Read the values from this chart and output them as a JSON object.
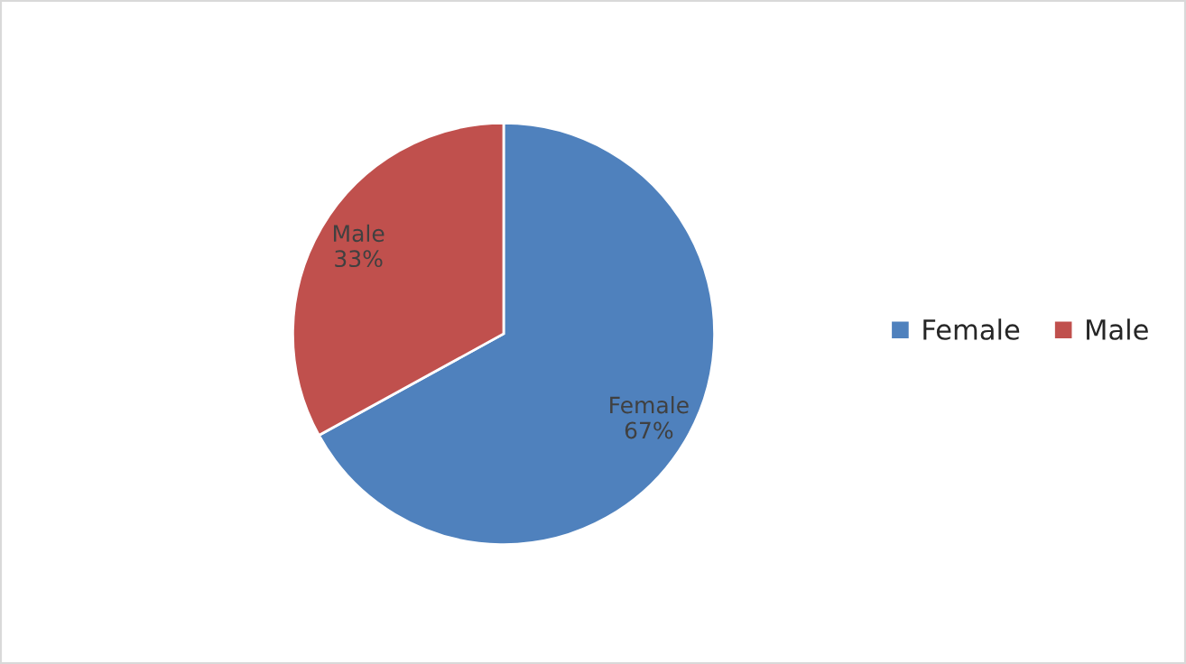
{
  "chart_data": {
    "type": "pie",
    "categories": [
      "Female",
      "Male"
    ],
    "values": [
      67,
      33
    ],
    "value_labels": [
      "67%",
      "33%"
    ],
    "colors": [
      "#4f81bd",
      "#c0504d"
    ],
    "legend": "right"
  }
}
